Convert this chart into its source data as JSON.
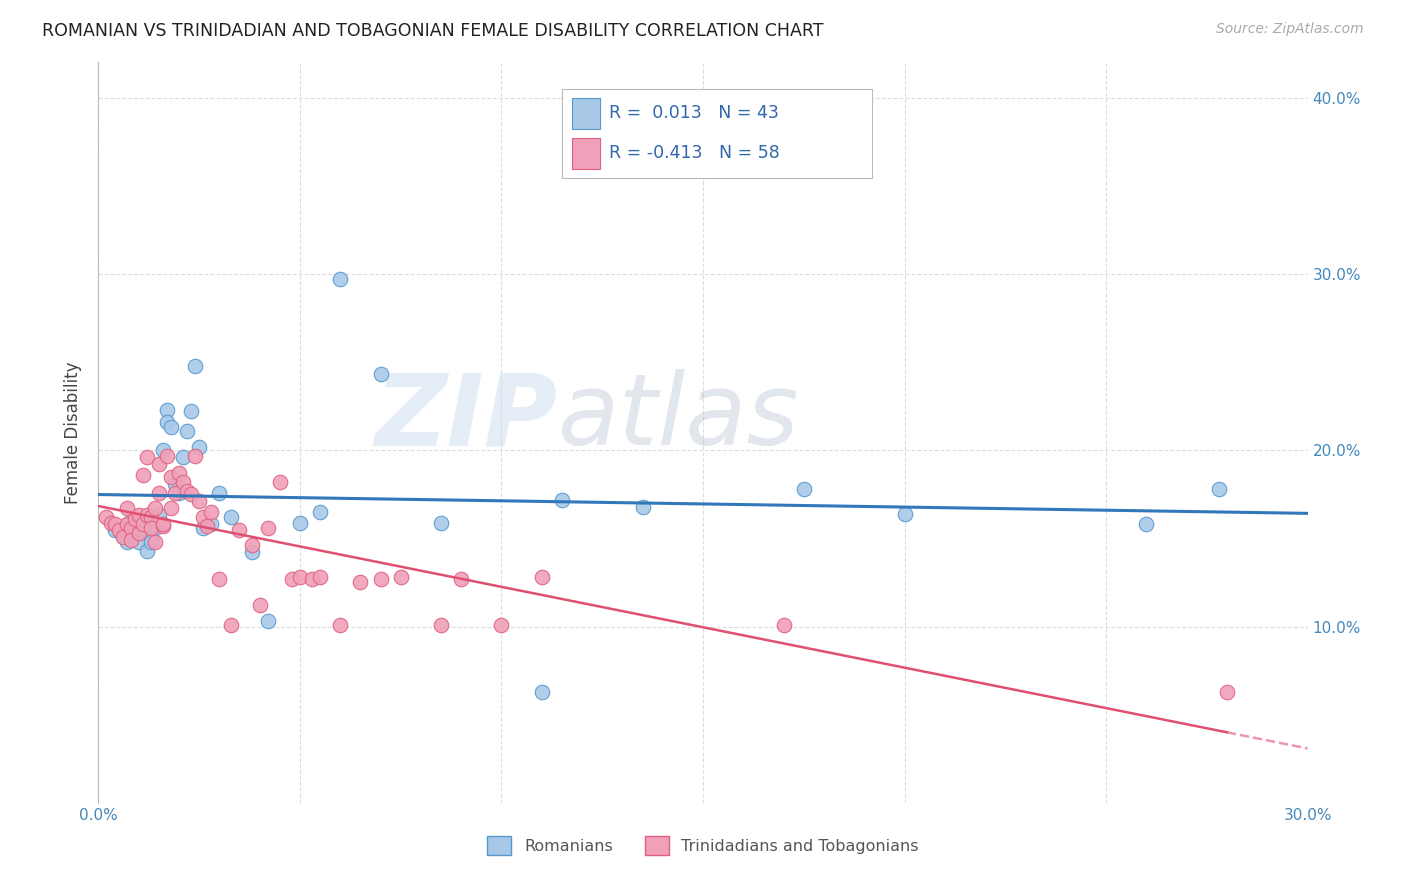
{
  "title": "ROMANIAN VS TRINIDADIAN AND TOBAGONIAN FEMALE DISABILITY CORRELATION CHART",
  "source": "Source: ZipAtlas.com",
  "ylabel": "Female Disability",
  "xlim": [
    0.0,
    0.3
  ],
  "ylim": [
    0.0,
    0.42
  ],
  "xticks": [
    0.0,
    0.05,
    0.1,
    0.15,
    0.2,
    0.25,
    0.3
  ],
  "yticks": [
    0.0,
    0.1,
    0.2,
    0.3,
    0.4
  ],
  "blue_scatter_color": "#A8C8E8",
  "blue_edge_color": "#5599CC",
  "pink_scatter_color": "#F0A0B8",
  "pink_edge_color": "#E06080",
  "blue_line_color": "#3377BB",
  "pink_line_color": "#E05070",
  "grid_color": "#DDDDDD",
  "r_romanian": 0.013,
  "n_romanian": 43,
  "r_trinidadian": -0.413,
  "n_trinidadian": 58,
  "romanian_x": [
    0.004,
    0.006,
    0.007,
    0.008,
    0.009,
    0.01,
    0.01,
    0.011,
    0.012,
    0.012,
    0.013,
    0.013,
    0.014,
    0.015,
    0.016,
    0.017,
    0.017,
    0.018,
    0.019,
    0.02,
    0.021,
    0.022,
    0.023,
    0.024,
    0.025,
    0.026,
    0.028,
    0.03,
    0.033,
    0.038,
    0.042,
    0.05,
    0.055,
    0.06,
    0.07,
    0.085,
    0.11,
    0.115,
    0.135,
    0.175,
    0.2,
    0.26,
    0.278
  ],
  "romanian_y": [
    0.155,
    0.152,
    0.148,
    0.16,
    0.158,
    0.153,
    0.148,
    0.161,
    0.159,
    0.143,
    0.15,
    0.148,
    0.156,
    0.163,
    0.2,
    0.223,
    0.216,
    0.213,
    0.181,
    0.176,
    0.196,
    0.211,
    0.222,
    0.248,
    0.202,
    0.156,
    0.158,
    0.176,
    0.162,
    0.142,
    0.103,
    0.159,
    0.165,
    0.297,
    0.243,
    0.159,
    0.063,
    0.172,
    0.168,
    0.178,
    0.164,
    0.158,
    0.178
  ],
  "trinidadian_x": [
    0.002,
    0.003,
    0.004,
    0.005,
    0.006,
    0.007,
    0.007,
    0.008,
    0.008,
    0.009,
    0.01,
    0.01,
    0.011,
    0.011,
    0.012,
    0.012,
    0.013,
    0.013,
    0.014,
    0.014,
    0.015,
    0.015,
    0.016,
    0.016,
    0.017,
    0.018,
    0.018,
    0.019,
    0.02,
    0.021,
    0.022,
    0.023,
    0.024,
    0.025,
    0.026,
    0.027,
    0.028,
    0.03,
    0.033,
    0.035,
    0.038,
    0.04,
    0.042,
    0.045,
    0.048,
    0.05,
    0.053,
    0.055,
    0.06,
    0.065,
    0.07,
    0.075,
    0.085,
    0.09,
    0.1,
    0.11,
    0.17,
    0.28
  ],
  "trinidadian_y": [
    0.162,
    0.159,
    0.158,
    0.155,
    0.151,
    0.167,
    0.158,
    0.156,
    0.149,
    0.161,
    0.163,
    0.153,
    0.186,
    0.158,
    0.196,
    0.163,
    0.162,
    0.156,
    0.167,
    0.148,
    0.176,
    0.192,
    0.157,
    0.158,
    0.197,
    0.185,
    0.167,
    0.176,
    0.187,
    0.182,
    0.177,
    0.175,
    0.197,
    0.171,
    0.162,
    0.157,
    0.165,
    0.127,
    0.101,
    0.155,
    0.146,
    0.112,
    0.156,
    0.182,
    0.127,
    0.128,
    0.127,
    0.128,
    0.101,
    0.125,
    0.127,
    0.128,
    0.101,
    0.127,
    0.101,
    0.128,
    0.101,
    0.063
  ],
  "watermark_zip": "ZIP",
  "watermark_atlas": "atlas"
}
